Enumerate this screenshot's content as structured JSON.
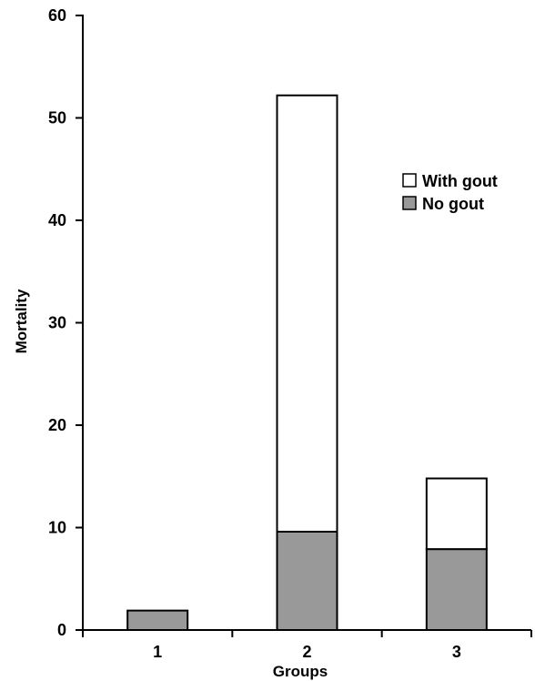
{
  "chart_data": {
    "type": "bar",
    "stacked": true,
    "title": "",
    "xlabel": "Groups",
    "ylabel": "Mortality",
    "categories": [
      "1",
      "2",
      "3"
    ],
    "ylim": [
      0,
      60
    ],
    "yticks": [
      0,
      10,
      20,
      30,
      40,
      50,
      60
    ],
    "grid": false,
    "legend_position": "right",
    "series": [
      {
        "name": "No gout",
        "color": "#999999",
        "values": [
          1.9,
          9.6,
          7.9
        ]
      },
      {
        "name": "With gout",
        "color": "#ffffff",
        "values": [
          0,
          42.6,
          6.9
        ]
      }
    ],
    "legend": [
      {
        "label": "With gout",
        "color": "#ffffff"
      },
      {
        "label": "No gout",
        "color": "#999999"
      }
    ]
  }
}
